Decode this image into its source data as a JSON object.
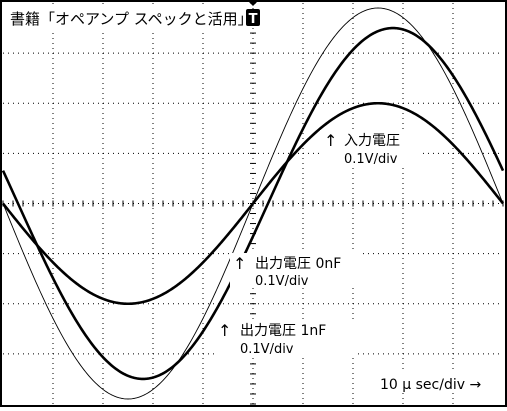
{
  "title": "書籍「オペアンプ スペックと活用」",
  "trigger_marker": "T",
  "timebase_label": "10 μ sec/div →",
  "annotations": [
    {
      "arrow": "↑",
      "name": "入力電圧",
      "scale": "0.1V/div"
    },
    {
      "arrow": "↑",
      "name": "出力電圧 0nF",
      "scale": "0.1V/div"
    },
    {
      "arrow": "↑",
      "name": "出力電圧 1nF",
      "scale": "0.1V/div"
    }
  ],
  "chart_data": {
    "type": "line",
    "title": "書籍「オペアンプ スペックと活用」",
    "xlabel": "10 μ sec/div",
    "ylabel": "",
    "x_divisions": 10,
    "y_divisions": 8,
    "xlim": [
      0,
      10
    ],
    "ylim": [
      -4,
      4
    ],
    "grid": true,
    "series": [
      {
        "name": "入力電圧",
        "style": "thick",
        "amplitude": 2.0,
        "zero_cross": 5.0
      },
      {
        "name": "出力電圧 0nF",
        "style": "thin",
        "amplitude": 3.9,
        "zero_cross": 5.0
      },
      {
        "name": "出力電圧 1nF",
        "style": "thick",
        "amplitude": 3.5,
        "zero_cross": 5.3
      }
    ],
    "period_div": 10
  }
}
